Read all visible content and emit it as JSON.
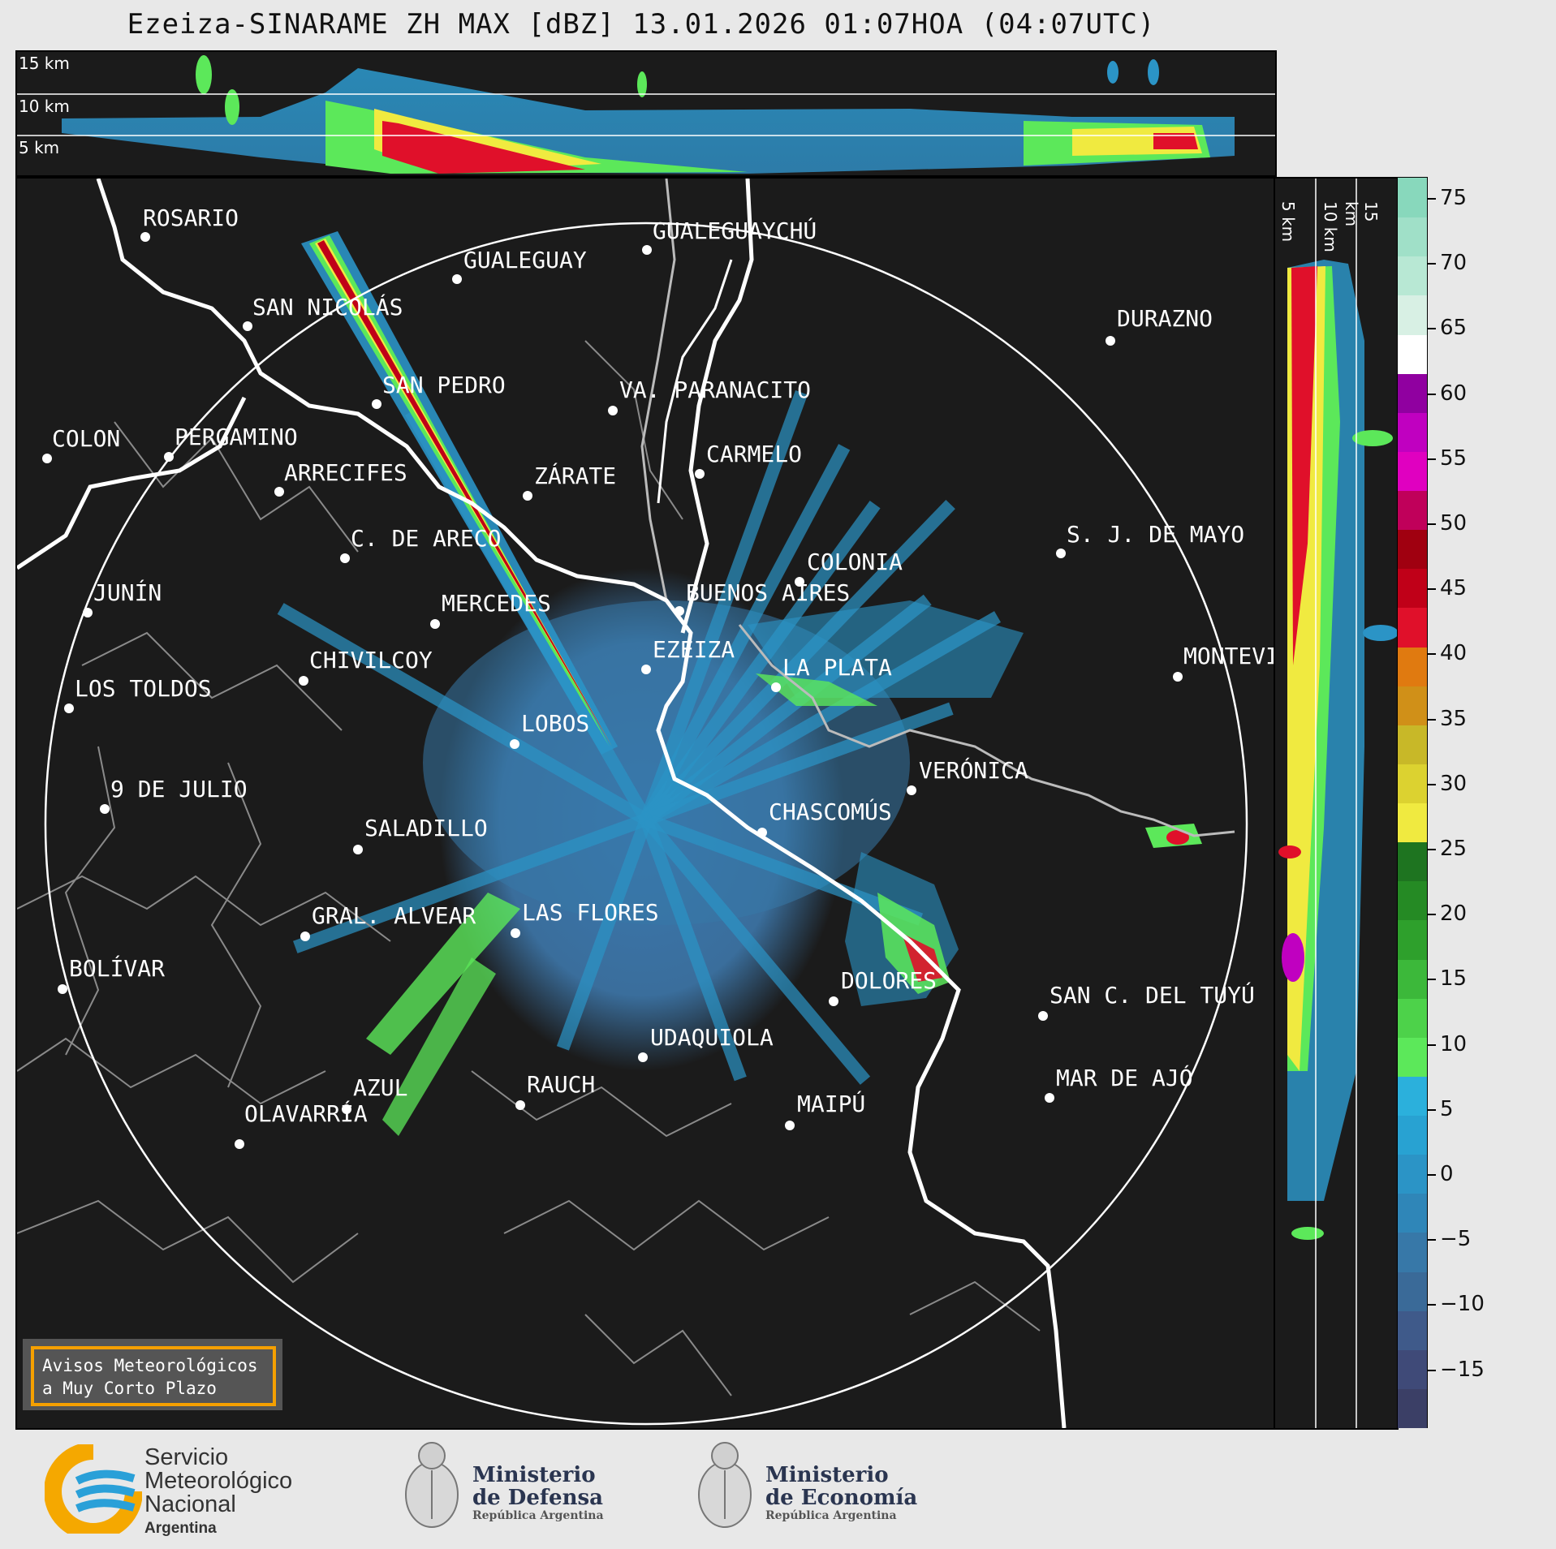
{
  "title": "Ezeiza-SINARAME ZH MAX [dBZ] 13.01.2026 01:07HOA (04:07UTC)",
  "top_panel": {
    "altitudes": [
      "15 km",
      "10 km",
      "5 km"
    ]
  },
  "side_panel": {
    "altitudes": [
      "5 km",
      "10 km",
      "15 km"
    ]
  },
  "colorbar": {
    "ticks": [
      "75",
      "70",
      "65",
      "60",
      "55",
      "50",
      "45",
      "40",
      "35",
      "30",
      "25",
      "20",
      "15",
      "10",
      "5",
      "0",
      "−5",
      "−10",
      "−15"
    ],
    "colors": [
      "#3b3f66",
      "#3f4a78",
      "#3f5a8a",
      "#3a6a98",
      "#3778a8",
      "#2f86b8",
      "#2b94c6",
      "#28a2d2",
      "#2bb0dc",
      "#5ce85a",
      "#4dd24a",
      "#3cb83a",
      "#2ea02c",
      "#258a24",
      "#1e7420",
      "#f0ea40",
      "#dcd230",
      "#c8b828",
      "#d09018",
      "#e07a10",
      "#e0102a",
      "#c00018",
      "#a00010",
      "#c0005a",
      "#e000c0",
      "#c000c0",
      "#9000a0",
      "#ffffff",
      "#d8f0e4",
      "#b8e8d4",
      "#a0e0c8",
      "#88d8bc"
    ]
  },
  "cities": [
    {
      "name": "ROSARIO"
    },
    {
      "name": "GUALEGUAYCHÚ"
    },
    {
      "name": "GUALEGUAY"
    },
    {
      "name": "SAN NICOLÁS"
    },
    {
      "name": "DURAZNO"
    },
    {
      "name": "SAN PEDRO"
    },
    {
      "name": "VA. PARANACITO"
    },
    {
      "name": "COLON"
    },
    {
      "name": "PERGAMINO"
    },
    {
      "name": "CARMELO"
    },
    {
      "name": "ARRECIFES"
    },
    {
      "name": "ZÁRATE"
    },
    {
      "name": "S. J. DE MAYO"
    },
    {
      "name": "C. DE ARECO"
    },
    {
      "name": "COLONIA"
    },
    {
      "name": "JUNÍN"
    },
    {
      "name": "BUENOS AIRES"
    },
    {
      "name": "MERCEDES"
    },
    {
      "name": "EZEIZA"
    },
    {
      "name": "CHIVILCOY"
    },
    {
      "name": "MONTEVIDEO"
    },
    {
      "name": "LA PLATA"
    },
    {
      "name": "LOS TOLDOS"
    },
    {
      "name": "LOBOS"
    },
    {
      "name": "VERÓNICA"
    },
    {
      "name": "9 DE JULIO"
    },
    {
      "name": "CHASCOMÚS"
    },
    {
      "name": "SALADILLO"
    },
    {
      "name": "GRAL. ALVEAR"
    },
    {
      "name": "LAS FLORES"
    },
    {
      "name": "BOLÍVAR"
    },
    {
      "name": "DOLORES"
    },
    {
      "name": "SAN C. DEL TUYÚ"
    },
    {
      "name": "UDAQUIOLA"
    },
    {
      "name": "MAR DE AJÓ"
    },
    {
      "name": "AZUL"
    },
    {
      "name": "RAUCH"
    },
    {
      "name": "OLAVARRÍA"
    },
    {
      "name": "MAIPÚ"
    }
  ],
  "warning_box": {
    "line1": "Avisos Meteorológicos",
    "line2": "a Muy Corto Plazo"
  },
  "footer": {
    "smn": {
      "line1": "Servicio",
      "line2": "Meteorológico",
      "line3": "Nacional",
      "line4": "Argentina"
    },
    "defensa": {
      "line1": "Ministerio",
      "line2": "de Defensa",
      "line3": "República Argentina"
    },
    "economia": {
      "line1": "Ministerio",
      "line2": "de Economía",
      "line3": "República Argentina"
    }
  }
}
